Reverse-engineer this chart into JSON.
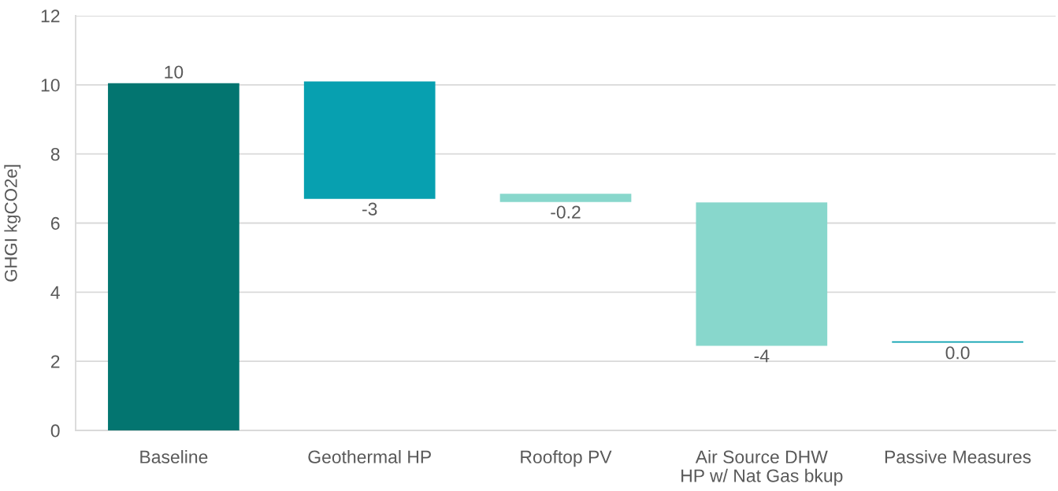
{
  "chart_data": {
    "type": "bar",
    "ylabel": "GHGI kgCO2e]",
    "categories": [
      "Baseline",
      "Geothermal HP",
      "Rooftop PV",
      "Air Source DHW\nHP w/ Nat Gas bkup",
      "Passive Measures"
    ],
    "values": [
      10.05,
      -3.4,
      -0.24,
      -4.15,
      -0.04
    ],
    "base": [
      0,
      10.1,
      6.85,
      6.6,
      2.58
    ],
    "colors": [
      "#037570",
      "#07a0b0",
      "#88d7cc",
      "#88d7cc",
      "#07a0b0"
    ],
    "value_labels": [
      "10",
      "-3",
      "-0.2",
      "-4",
      "0.0"
    ],
    "ylim": [
      0,
      12
    ],
    "yticks": [
      0,
      2,
      4,
      6,
      8,
      10,
      12
    ],
    "grid": "y"
  }
}
